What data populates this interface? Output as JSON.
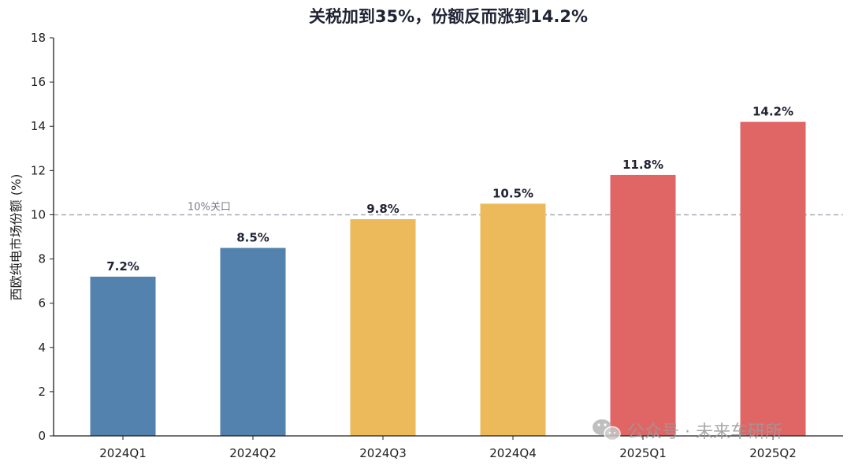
{
  "chart_data": {
    "type": "bar",
    "title": "关税加到35%，份额反而涨到14.2%",
    "ylabel": "西欧纯电市场份额 (%)",
    "xlabel": "",
    "categories": [
      "2024Q1",
      "2024Q2",
      "2024Q3",
      "2024Q4",
      "2025Q1",
      "2025Q2"
    ],
    "values": [
      7.2,
      8.5,
      9.8,
      10.5,
      11.8,
      14.2
    ],
    "value_labels": [
      "7.2%",
      "8.5%",
      "9.8%",
      "10.5%",
      "11.8%",
      "14.2%"
    ],
    "bar_colors": [
      "#5282ad",
      "#5282ad",
      "#ecba5b",
      "#ecba5b",
      "#e06666",
      "#e06666"
    ],
    "ylim": [
      0,
      18
    ],
    "yticks": [
      0,
      2,
      4,
      6,
      8,
      10,
      12,
      14,
      16,
      18
    ],
    "reference_line": {
      "y": 10,
      "label": "10%关口",
      "color": "#a9adb8"
    },
    "grid": false,
    "legend": "none"
  },
  "watermark": {
    "text": "公众号 · 未来车研所",
    "icon": "wechat-icon"
  }
}
